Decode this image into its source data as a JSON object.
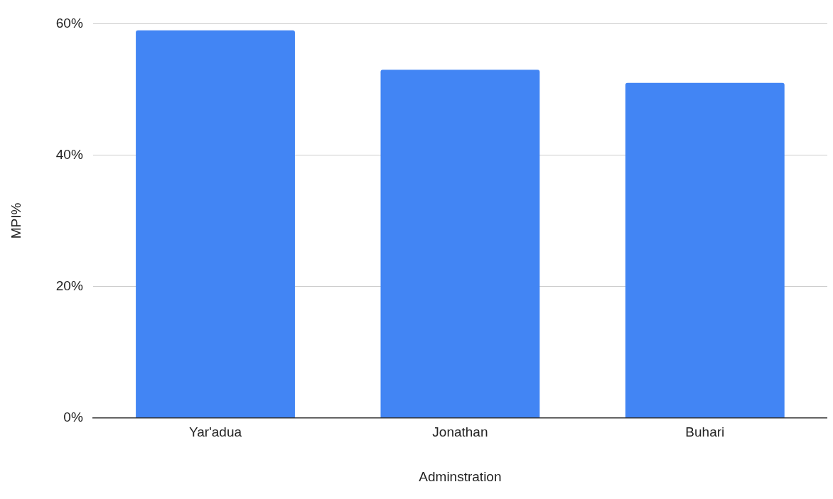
{
  "chart_data": {
    "type": "bar",
    "xlabel": "Adminstration",
    "ylabel": "MPI%",
    "categories": [
      "Yar'adua",
      "Jonathan",
      "Buhari"
    ],
    "values": [
      59,
      53,
      51
    ],
    "color": "#4285f4",
    "ylim": [
      0,
      60
    ],
    "yticks": [
      {
        "value": 0,
        "label": "0%"
      },
      {
        "value": 20,
        "label": "20%"
      },
      {
        "value": 40,
        "label": "40%"
      },
      {
        "value": 60,
        "label": "60%"
      }
    ],
    "grid": "y",
    "legend": false
  }
}
